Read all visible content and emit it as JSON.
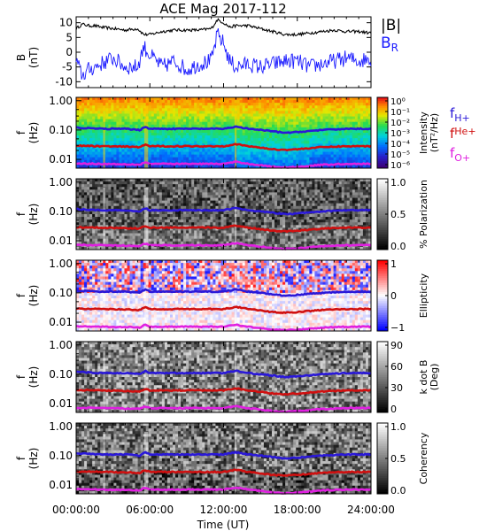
{
  "title": "ACE Mag 2017-112",
  "time_axis": {
    "label": "Time (UT)",
    "ticks": [
      "00:00:00",
      "06:00:00",
      "12:00:00",
      "18:00:00",
      "24:00:00"
    ]
  },
  "freq_ticks": [
    "1.00",
    "0.10",
    "0.01"
  ],
  "legend": {
    "b_total": "|B|",
    "b_r_main": "B",
    "b_r_sub": "R",
    "b_total_color": "#000000",
    "b_r_color": "#1a1aff",
    "f_main": "f",
    "f_h_sub": "H+",
    "f_he_sub": "He+",
    "f_o_sub": "O+",
    "f_h_color": "#2a18d8",
    "f_he_color": "#d01010",
    "f_o_color": "#e020e0"
  },
  "panels": [
    {
      "id": "field",
      "ylabel1": "B",
      "ylabel2": "(nT)",
      "yticks": [
        "10",
        "5",
        "0",
        "-5",
        "-10"
      ]
    },
    {
      "id": "intensity",
      "ylabel1": "f",
      "ylabel2": "(Hz)",
      "colorbar_title1": "Intensity",
      "colorbar_title2": "(nT²/Hz)",
      "colorbar_ticks": [
        "10⁰",
        "10⁻¹",
        "10⁻²",
        "10⁻³",
        "10⁻⁴",
        "10⁻⁵",
        "10⁻⁶"
      ]
    },
    {
      "id": "polarization",
      "ylabel1": "f",
      "ylabel2": "(Hz)",
      "colorbar_title1": "% Polarization",
      "colorbar_title2": "",
      "colorbar_ticks": [
        "1.0",
        "0.5",
        "0.0"
      ]
    },
    {
      "id": "ellipticity",
      "ylabel1": "f",
      "ylabel2": "(Hz)",
      "colorbar_title1": "Ellipticity",
      "colorbar_title2": "",
      "colorbar_ticks": [
        "1",
        "0",
        "−1"
      ]
    },
    {
      "id": "kdotb",
      "ylabel1": "f",
      "ylabel2": "(Hz)",
      "colorbar_title1": "k dot B",
      "colorbar_title2": "(Deg)",
      "colorbar_ticks": [
        "90",
        "60",
        "30",
        "0"
      ]
    },
    {
      "id": "coherency",
      "ylabel1": "f",
      "ylabel2": "(Hz)",
      "colorbar_title1": "Coherency",
      "colorbar_title2": "",
      "colorbar_ticks": [
        "1.0",
        "0.5",
        "0.0"
      ]
    }
  ],
  "chart_data": [
    {
      "type": "line",
      "x_unit": "hours UT",
      "xlim": [
        0,
        24
      ],
      "ylim": [
        -12,
        12
      ],
      "series": [
        {
          "name": "|B|",
          "x": [
            0,
            0.5,
            1,
            1.5,
            2,
            3,
            4,
            5,
            5.5,
            6,
            7,
            8,
            9,
            10,
            11,
            11.5,
            12,
            12.5,
            13,
            14,
            15,
            16,
            17,
            18,
            19,
            20,
            21,
            22,
            23,
            24
          ],
          "values": [
            8,
            9.5,
            9,
            9,
            8.5,
            8,
            7.5,
            8,
            6,
            6,
            7,
            7.5,
            7.5,
            7.5,
            8,
            11,
            10,
            8.5,
            9,
            9,
            8,
            7,
            6,
            6,
            6.5,
            7,
            7.5,
            7,
            7,
            6.5
          ]
        },
        {
          "name": "B",
          "x": [
            0,
            0.5,
            1,
            1.5,
            2,
            3,
            4,
            5,
            5.5,
            6,
            7,
            8,
            9,
            10,
            11,
            11.5,
            12,
            12.5,
            13,
            14,
            15,
            16,
            17,
            18,
            19,
            20,
            21,
            22,
            23,
            24
          ],
          "values": [
            -3,
            -8,
            -6,
            -5,
            -4,
            -2,
            -5,
            -5,
            2,
            -1,
            -5,
            -3,
            -6,
            -4,
            -3,
            6,
            3,
            -3,
            -5,
            -4,
            -5,
            -4,
            -3,
            -3,
            -5,
            -4,
            -3,
            -2,
            -3,
            -2
          ]
        }
      ]
    },
    {
      "type": "heatmap",
      "name": "intensity",
      "x_unit": "hours UT",
      "xlim": [
        0,
        24
      ],
      "y_unit": "Hz",
      "ylim": [
        0.005,
        1.3
      ],
      "y_scale": "log",
      "colorscale": "rainbow (purple low → red high)",
      "zlim": [
        1e-06,
        1
      ],
      "overlays": [
        {
          "name": "H+",
          "x": [
            0,
            2,
            4,
            5.2,
            5.6,
            6,
            8,
            10,
            12,
            13,
            14,
            15,
            16,
            17,
            18,
            20,
            22,
            24
          ],
          "values": [
            0.12,
            0.11,
            0.11,
            0.1,
            0.13,
            0.11,
            0.11,
            0.11,
            0.11,
            0.13,
            0.11,
            0.1,
            0.09,
            0.08,
            0.085,
            0.1,
            0.11,
            0.11
          ]
        },
        {
          "name": "He+",
          "x": [
            0,
            2,
            4,
            5.2,
            5.6,
            6,
            8,
            10,
            12,
            13,
            14,
            15,
            16,
            17,
            18,
            20,
            22,
            24
          ],
          "values": [
            0.029,
            0.028,
            0.027,
            0.026,
            0.032,
            0.028,
            0.028,
            0.028,
            0.028,
            0.033,
            0.028,
            0.025,
            0.022,
            0.021,
            0.022,
            0.026,
            0.028,
            0.028
          ]
        },
        {
          "name": "O+",
          "x": [
            0,
            2,
            4,
            5.2,
            5.6,
            6,
            8,
            10,
            12,
            13,
            14,
            15,
            16,
            17,
            18,
            20,
            22,
            24
          ],
          "values": [
            0.0072,
            0.007,
            0.0068,
            0.0066,
            0.008,
            0.007,
            0.007,
            0.007,
            0.007,
            0.0082,
            0.007,
            0.0063,
            0.0056,
            0.0053,
            0.0055,
            0.0065,
            0.007,
            0.007
          ]
        }
      ]
    },
    {
      "type": "heatmap",
      "name": "polarization",
      "colorscale": "grayscale (black low → white high)",
      "zlim": [
        0,
        1
      ]
    },
    {
      "type": "heatmap",
      "name": "ellipticity",
      "colorscale": "blue → white → red",
      "zlim": [
        -1,
        1
      ]
    },
    {
      "type": "heatmap",
      "name": "kdotb",
      "colorscale": "grayscale",
      "zlim": [
        0,
        90
      ]
    },
    {
      "type": "heatmap",
      "name": "coherency",
      "colorscale": "grayscale",
      "zlim": [
        0,
        1
      ]
    }
  ]
}
